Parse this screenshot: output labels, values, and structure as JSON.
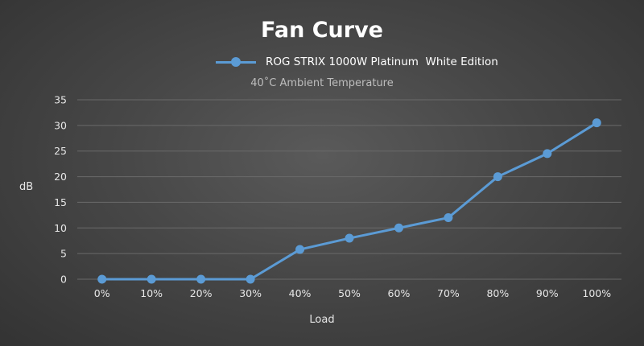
{
  "chart_data": {
    "type": "line",
    "title": "Fan Curve",
    "subtitle": "40˚C Ambient Temperature",
    "xlabel": "Load",
    "ylabel": "dB",
    "categories": [
      "0%",
      "10%",
      "20%",
      "30%",
      "40%",
      "50%",
      "60%",
      "70%",
      "80%",
      "90%",
      "100%"
    ],
    "series": [
      {
        "name": "ROG STRIX 1000W Platinum  White Edition",
        "values": [
          0,
          0,
          0,
          0,
          5.8,
          8,
          10,
          12,
          20,
          24.5,
          30.5
        ]
      }
    ],
    "ylim": [
      0,
      35
    ],
    "yticks": [
      0,
      5,
      10,
      15,
      20,
      25,
      30,
      35
    ],
    "grid": true,
    "legend_position": "top-center",
    "colors": {
      "series": "#5b9bd5",
      "grid": "#6a6a6a",
      "text": "#e6e6e6"
    }
  }
}
